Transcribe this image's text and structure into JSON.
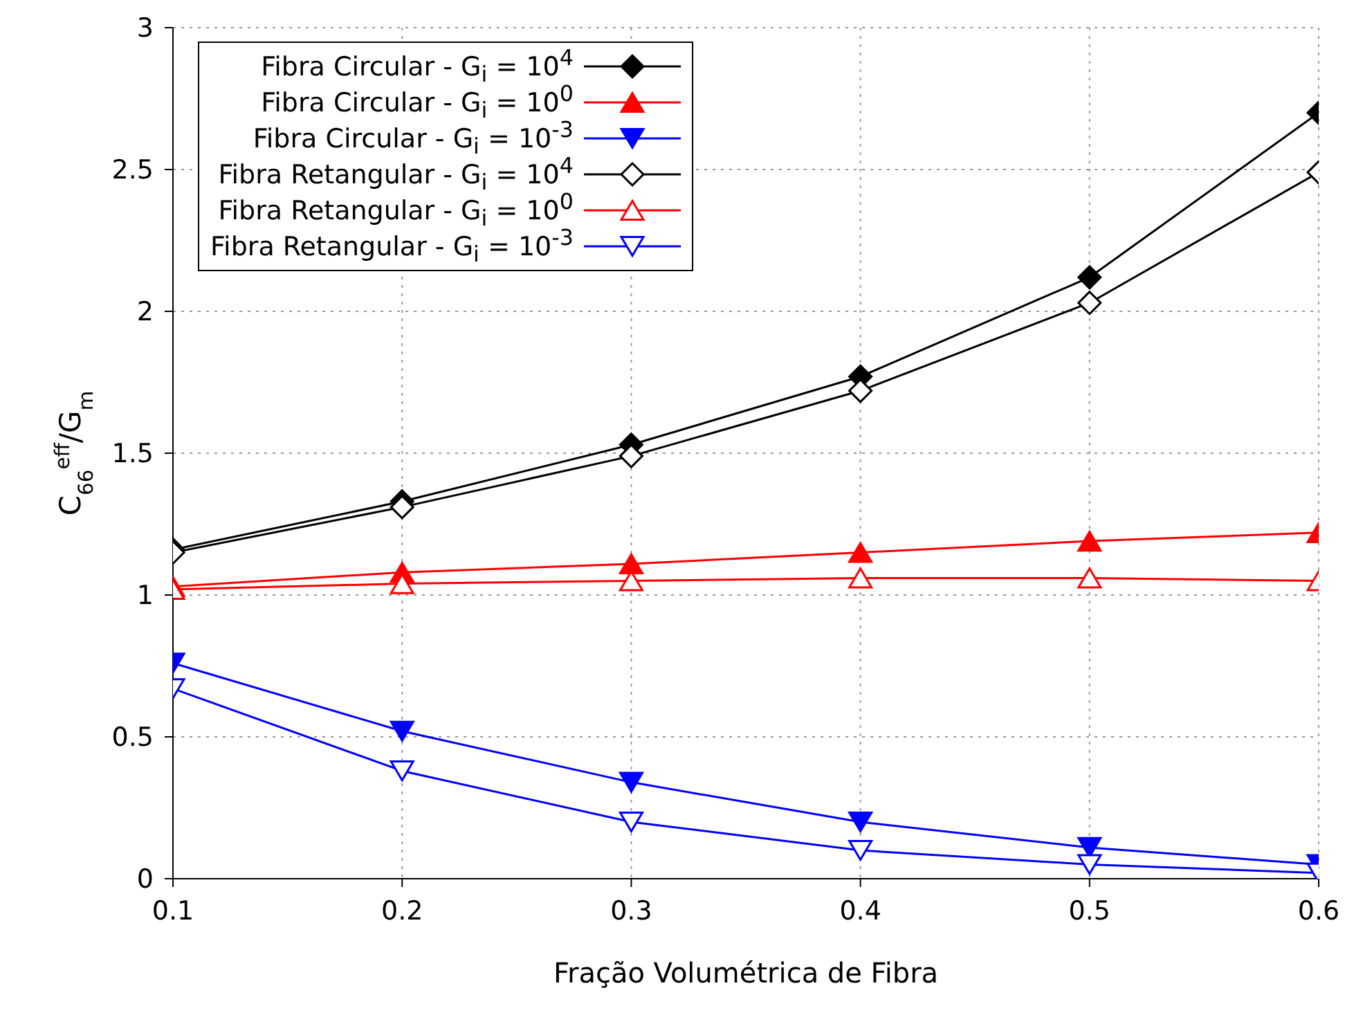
{
  "chart_data": {
    "type": "line",
    "xlabel": "Fração Volumétrica de Fibra",
    "ylabel": "C$_{66}$$^{eff}$/G$_{m}$",
    "x": [
      0.1,
      0.2,
      0.3,
      0.4,
      0.5,
      0.6
    ],
    "xlim": [
      0.1,
      0.6
    ],
    "xticks": [
      0.1,
      0.2,
      0.3,
      0.4,
      0.5,
      0.6
    ],
    "ylim": [
      0,
      3
    ],
    "yticks": [
      0,
      0.5,
      1,
      1.5,
      2,
      2.5,
      3
    ],
    "grid": true,
    "legend": "top left",
    "line_style": "solid",
    "series": [
      {
        "name": "Fibra Circular - G$_{i}$ = 10$^{4}$",
        "color": "#000000",
        "marker": "diamond",
        "values": [
          1.16,
          1.33,
          1.53,
          1.77,
          2.12,
          2.7
        ]
      },
      {
        "name": "Fibra Circular - G$_{i}$ = 10$^{0}$",
        "color": "#ff0000",
        "marker": "triangle",
        "values": [
          1.03,
          1.08,
          1.11,
          1.15,
          1.19,
          1.22
        ]
      },
      {
        "name": "Fibra Circular - G$_{i}$ = 10$^{-3}$",
        "color": "#0000ff",
        "marker": "triangle-down",
        "values": [
          0.76,
          0.52,
          0.34,
          0.2,
          0.11,
          0.05
        ]
      },
      {
        "name": "Fibra Retangular - G$_{i}$ = 10$^{4}$",
        "color": "#000000",
        "marker": "diamond-open",
        "values": [
          1.15,
          1.31,
          1.49,
          1.72,
          2.03,
          2.49
        ]
      },
      {
        "name": "Fibra Retangular - G$_{i}$ = 10$^{0}$",
        "color": "#ff0000",
        "marker": "triangle-open",
        "values": [
          1.02,
          1.04,
          1.05,
          1.06,
          1.06,
          1.05
        ]
      },
      {
        "name": "Fibra Retangular - G$_{i}$ = 10$^{-3}$",
        "color": "#0000ff",
        "marker": "triangle-down-open",
        "values": [
          0.67,
          0.38,
          0.2,
          0.1,
          0.05,
          0.02
        ]
      }
    ]
  }
}
